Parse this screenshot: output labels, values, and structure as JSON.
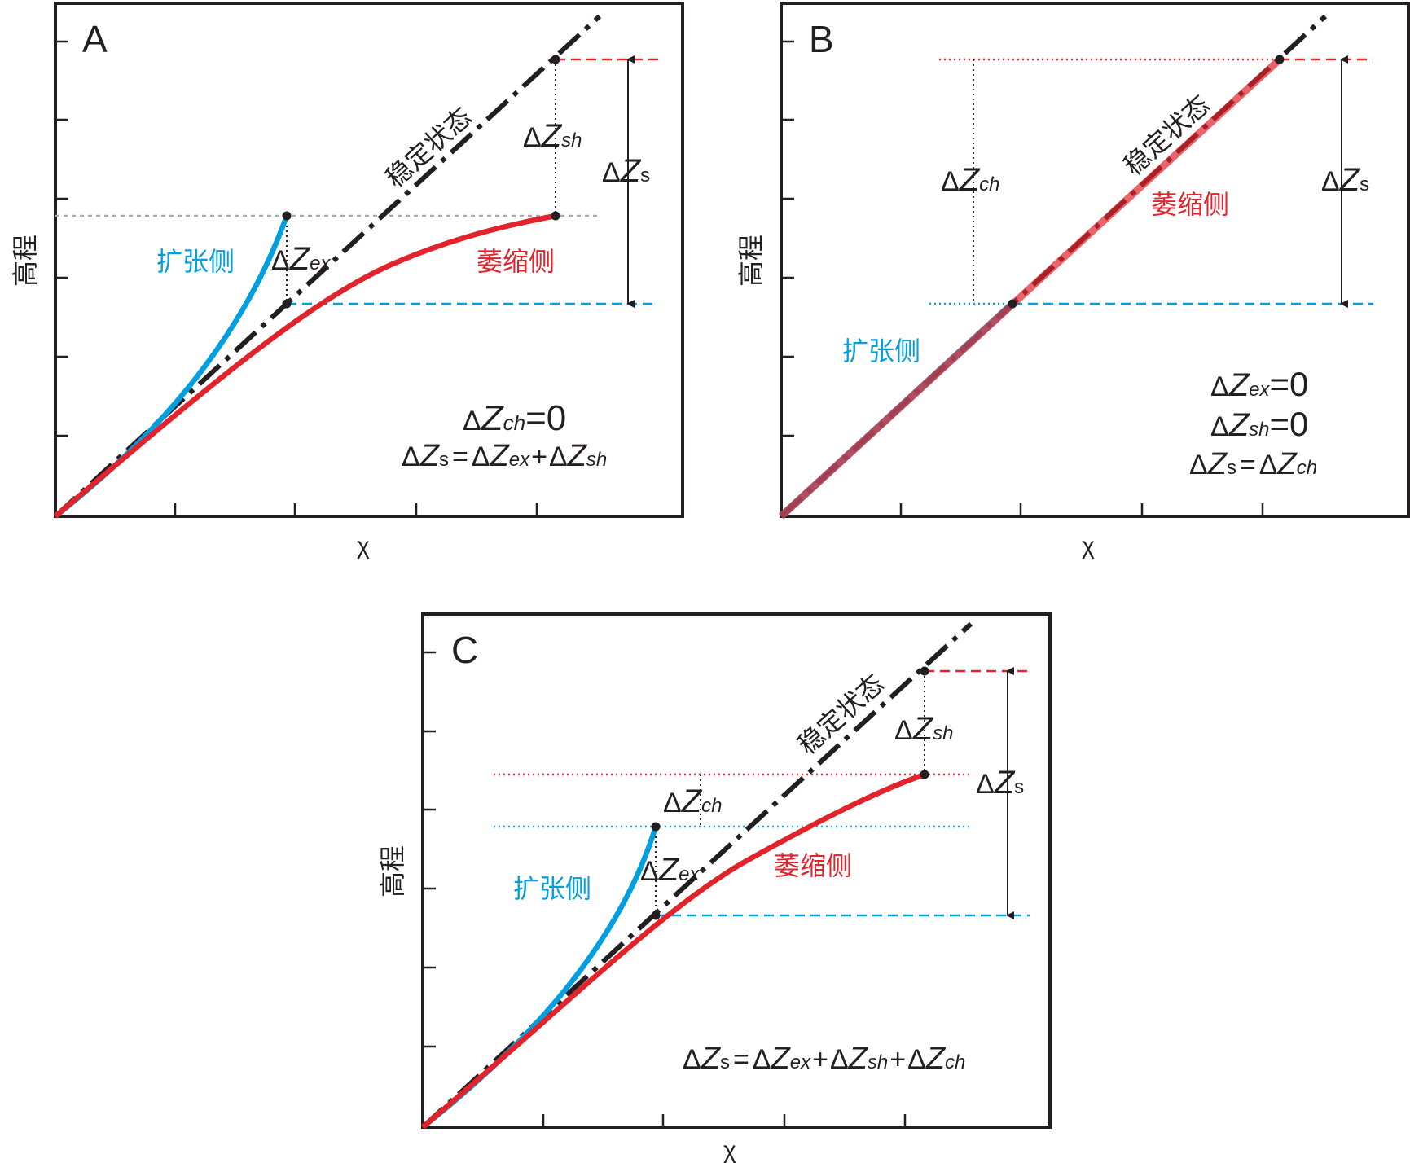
{
  "colors": {
    "axis": "#231f20",
    "expansion": "#00a0e0",
    "contraction": "#e2232b",
    "steady": "#231f20",
    "guide_gray": "#a7a9ac"
  },
  "panels": [
    {
      "id": "A",
      "letter": "A",
      "xlabel": "χ",
      "ylabel": "高程",
      "steady_label": "稳定状态",
      "expansion_label": "扩张侧",
      "contraction_label": "萎缩侧",
      "dz_ex": {
        "d": "Δ",
        "z": "Z",
        "sub": "ex"
      },
      "dz_sh": {
        "d": "Δ",
        "z": "Z",
        "sub": "sh"
      },
      "dz_s": {
        "d": "Δ",
        "z": "Z",
        "sub": "s"
      },
      "eq1": {
        "d": "Δ",
        "z": "Z",
        "sub": "ch",
        "rest": "=0"
      },
      "eq2": {
        "lhs": {
          "d": "Δ",
          "z": "Z",
          "sub": "s"
        },
        "op1": "=",
        "t1": {
          "d": "Δ",
          "z": "Z",
          "sub": "ex"
        },
        "op2": "+",
        "t2": {
          "d": "Δ",
          "z": "Z",
          "sub": "sh"
        }
      }
    },
    {
      "id": "B",
      "letter": "B",
      "xlabel": "χ",
      "ylabel": "高程",
      "steady_label": "稳定状态",
      "expansion_label": "扩张侧",
      "contraction_label": "萎缩侧",
      "dz_ch": {
        "d": "Δ",
        "z": "Z",
        "sub": "ch"
      },
      "dz_s": {
        "d": "Δ",
        "z": "Z",
        "sub": "s"
      },
      "eq1": {
        "d": "Δ",
        "z": "Z",
        "sub": "ex",
        "rest": "=0"
      },
      "eq2": {
        "d": "Δ",
        "z": "Z",
        "sub": "sh",
        "rest": "=0"
      },
      "eq3": {
        "lhs": {
          "d": "Δ",
          "z": "Z",
          "sub": "s"
        },
        "op1": "=",
        "t1": {
          "d": "Δ",
          "z": "Z",
          "sub": "ch"
        }
      }
    },
    {
      "id": "C",
      "letter": "C",
      "xlabel": "χ",
      "ylabel": "高程",
      "steady_label": "稳定状态",
      "expansion_label": "扩张侧",
      "contraction_label": "萎缩侧",
      "dz_ch": {
        "d": "Δ",
        "z": "Z",
        "sub": "ch"
      },
      "dz_ex": {
        "d": "Δ",
        "z": "Z",
        "sub": "ex"
      },
      "dz_sh": {
        "d": "Δ",
        "z": "Z",
        "sub": "sh"
      },
      "dz_s": {
        "d": "Δ",
        "z": "Z",
        "sub": "s"
      },
      "eq1": {
        "lhs": {
          "d": "Δ",
          "z": "Z",
          "sub": "s"
        },
        "op1": "=",
        "t1": {
          "d": "Δ",
          "z": "Z",
          "sub": "ex"
        },
        "op2": "+",
        "t2": {
          "d": "Δ",
          "z": "Z",
          "sub": "sh"
        },
        "op3": "+",
        "t3": {
          "d": "Δ",
          "z": "Z",
          "sub": "ch"
        }
      }
    }
  ]
}
